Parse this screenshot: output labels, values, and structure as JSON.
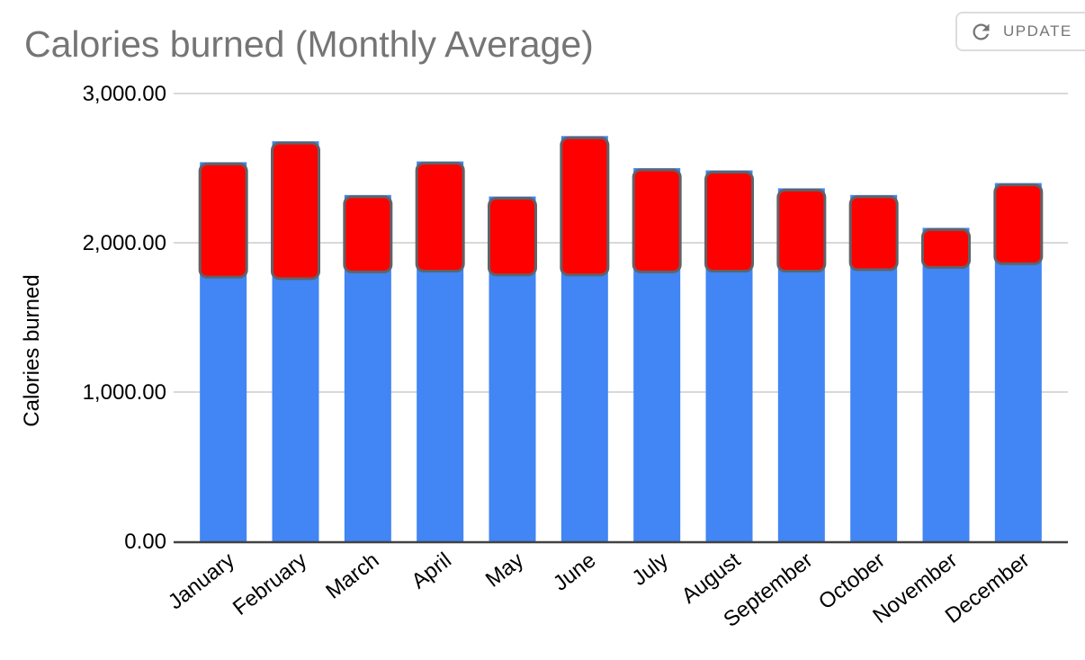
{
  "header": {
    "update_label": "UPDATE",
    "update_icon": "refresh-icon"
  },
  "chart_data": {
    "type": "bar",
    "subtype": "column-with-red-overlay-box",
    "title": "Calories burned (Monthly Average)",
    "xlabel": "",
    "ylabel": "Calories burned",
    "categories": [
      "January",
      "February",
      "March",
      "April",
      "May",
      "June",
      "July",
      "August",
      "September",
      "October",
      "November",
      "December"
    ],
    "series": [
      {
        "name": "blue segment (0 to value)",
        "color": "#4285f4",
        "values": [
          1770,
          1760,
          1805,
          1810,
          1785,
          1785,
          1805,
          1810,
          1810,
          1820,
          1835,
          1860
        ]
      },
      {
        "name": "red segment (blue value to monthly total)",
        "color": "#ff0000",
        "stroke": "#5f6368",
        "values": [
          2540,
          2680,
          2320,
          2545,
          2310,
          2715,
          2500,
          2485,
          2365,
          2320,
          2100,
          2400
        ]
      }
    ],
    "ylim": [
      0,
      3000
    ],
    "yticks": [
      {
        "value": 0,
        "label": "0.00"
      },
      {
        "value": 1000,
        "label": "1,000.00"
      },
      {
        "value": 2000,
        "label": "2,000.00"
      },
      {
        "value": 3000,
        "label": "3,000.00"
      }
    ],
    "grid": true,
    "legend_position": "none",
    "colors": {
      "bar_blue": "#4285f4",
      "bar_red": "#ff0000",
      "bar_red_stroke": "#5f6368",
      "gridline": "#d9d9d9",
      "axis_line": "#424242",
      "title_gray": "#757575",
      "axis_text": "#000000"
    }
  }
}
